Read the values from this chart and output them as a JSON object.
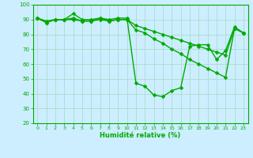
{
  "title": "",
  "xlabel": "Humidité relative (%)",
  "ylabel": "",
  "background_color": "#cceeff",
  "grid_color": "#aaddcc",
  "line_color": "#00aa00",
  "x": [
    0,
    1,
    2,
    3,
    4,
    5,
    6,
    7,
    8,
    9,
    10,
    11,
    12,
    13,
    14,
    15,
    16,
    17,
    18,
    19,
    20,
    21,
    22,
    23
  ],
  "line1": [
    91,
    89,
    90,
    90,
    94,
    90,
    90,
    91,
    90,
    91,
    91,
    47,
    45,
    39,
    38,
    42,
    44,
    72,
    73,
    73,
    63,
    69,
    85,
    81
  ],
  "line2": [
    91,
    88,
    90,
    90,
    90,
    89,
    89,
    90,
    89,
    90,
    90,
    83,
    81,
    77,
    74,
    70,
    67,
    63,
    60,
    57,
    54,
    51,
    84,
    81
  ],
  "line3": [
    91,
    88,
    90,
    90,
    91,
    89,
    89,
    91,
    89,
    90,
    90,
    86,
    84,
    82,
    80,
    78,
    76,
    74,
    72,
    70,
    68,
    66,
    84,
    81
  ],
  "ylim": [
    20,
    100
  ],
  "xlim": [
    -0.5,
    23.5
  ],
  "yticks": [
    20,
    30,
    40,
    50,
    60,
    70,
    80,
    90,
    100
  ],
  "xticks": [
    0,
    1,
    2,
    3,
    4,
    5,
    6,
    7,
    8,
    9,
    10,
    11,
    12,
    13,
    14,
    15,
    16,
    17,
    18,
    19,
    20,
    21,
    22,
    23
  ],
  "markersize": 2.5,
  "linewidth": 1.0
}
